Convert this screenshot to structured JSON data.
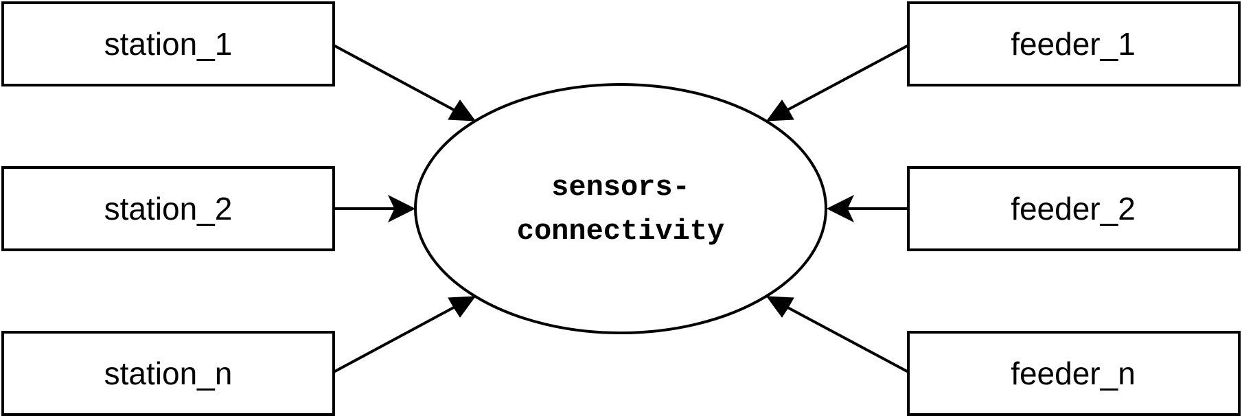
{
  "diagram": {
    "hub": {
      "label_line1": "sensors-",
      "label_line2": "connectivity"
    },
    "stations": [
      {
        "label": "station_1"
      },
      {
        "label": "station_2"
      },
      {
        "label": "station_n"
      }
    ],
    "feeders": [
      {
        "label": "feeder_1"
      },
      {
        "label": "feeder_2"
      },
      {
        "label": "feeder_n"
      }
    ]
  }
}
